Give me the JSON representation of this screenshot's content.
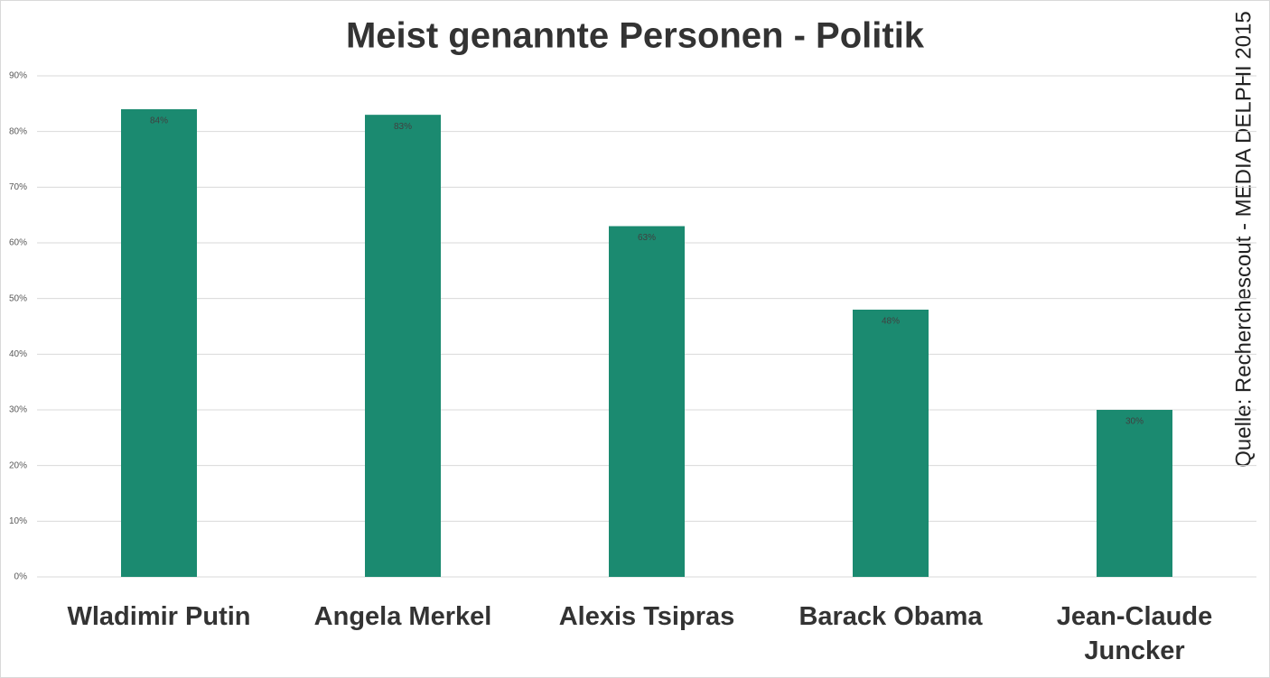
{
  "chart_data": {
    "type": "bar",
    "title": "Meist genannte Personen - Politik",
    "source": "Quelle: Recherchescout - MEDIA DELPHI 2015",
    "categories": [
      "Wladimir Putin",
      "Angela Merkel",
      "Alexis Tsipras",
      "Barack Obama",
      "Jean-Claude Juncker"
    ],
    "values": [
      84,
      83,
      63,
      48,
      30
    ],
    "value_labels": [
      "84%",
      "83%",
      "63%",
      "48%",
      "30%"
    ],
    "color": "#1b8a70",
    "ylim": [
      0,
      90
    ],
    "yticks": [
      {
        "value": 0,
        "label": "0%"
      },
      {
        "value": 10,
        "label": "10%"
      },
      {
        "value": 20,
        "label": "20%"
      },
      {
        "value": 30,
        "label": "30%"
      },
      {
        "value": 40,
        "label": "40%"
      },
      {
        "value": 50,
        "label": "50%"
      },
      {
        "value": 60,
        "label": "60%"
      },
      {
        "value": 70,
        "label": "70%"
      },
      {
        "value": 80,
        "label": "80%"
      },
      {
        "value": 90,
        "label": "90%"
      }
    ],
    "grid": true
  }
}
